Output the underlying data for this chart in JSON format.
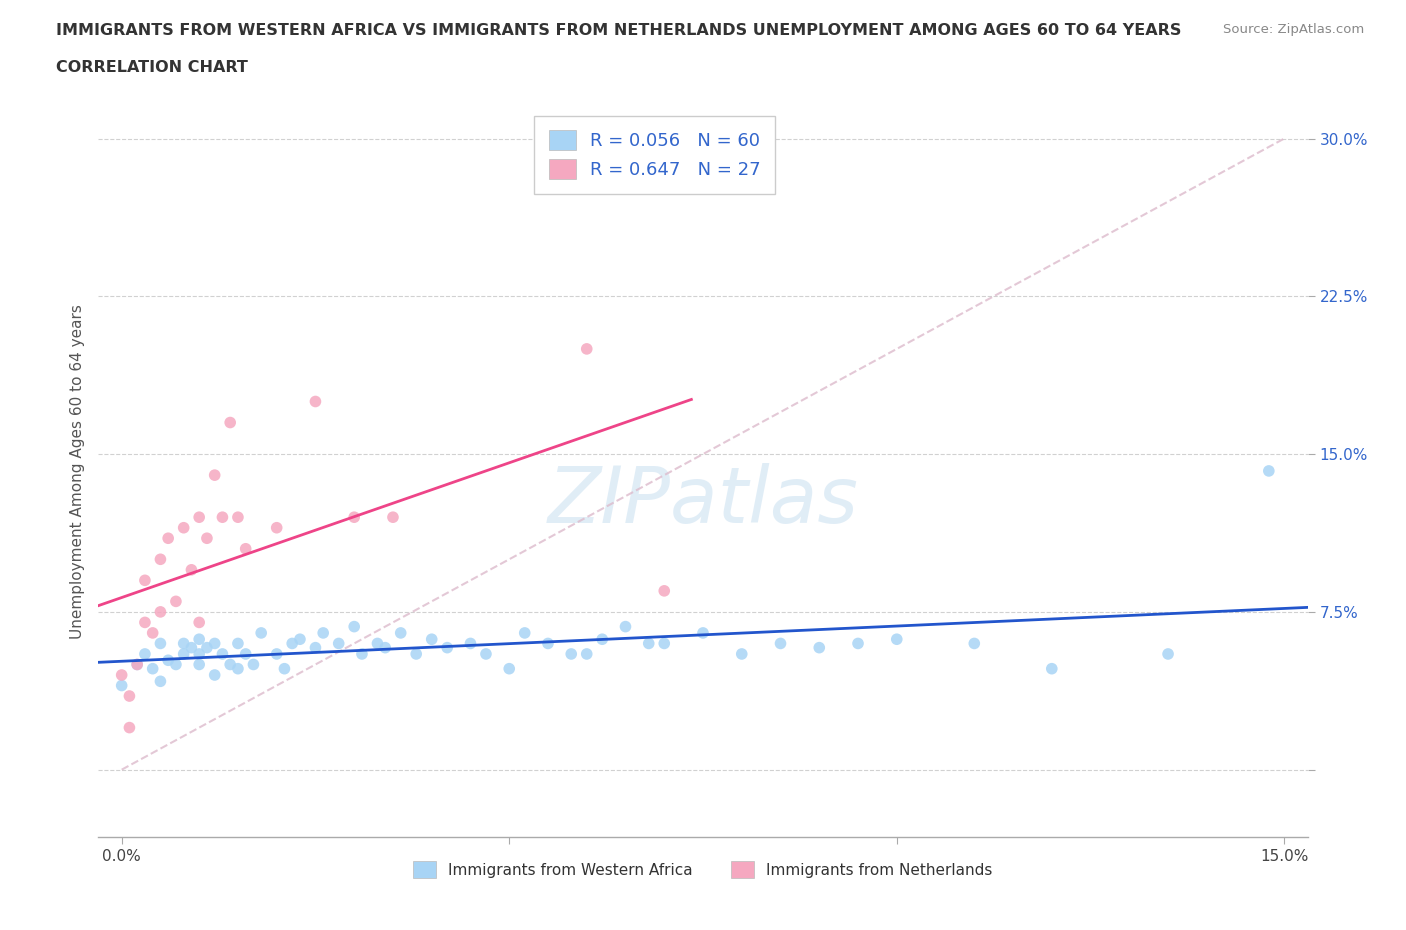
{
  "title_line1": "IMMIGRANTS FROM WESTERN AFRICA VS IMMIGRANTS FROM NETHERLANDS UNEMPLOYMENT AMONG AGES 60 TO 64 YEARS",
  "title_line2": "CORRELATION CHART",
  "source": "Source: ZipAtlas.com",
  "ylabel": "Unemployment Among Ages 60 to 64 years",
  "watermark": "ZIPatlas",
  "xlim": [
    -0.003,
    0.153
  ],
  "ylim": [
    -0.032,
    0.315
  ],
  "r_blue": 0.056,
  "n_blue": 60,
  "r_pink": 0.647,
  "n_pink": 27,
  "color_blue": "#A8D4F5",
  "color_pink": "#F5A8C0",
  "line_blue": "#2255CC",
  "line_pink": "#EE4488",
  "legend_label_blue": "Immigrants from Western Africa",
  "legend_label_pink": "Immigrants from Netherlands",
  "blue_x": [
    0.0,
    0.002,
    0.003,
    0.004,
    0.005,
    0.005,
    0.006,
    0.007,
    0.008,
    0.008,
    0.009,
    0.01,
    0.01,
    0.01,
    0.011,
    0.012,
    0.012,
    0.013,
    0.014,
    0.015,
    0.015,
    0.016,
    0.017,
    0.018,
    0.02,
    0.021,
    0.022,
    0.023,
    0.025,
    0.026,
    0.028,
    0.03,
    0.031,
    0.033,
    0.034,
    0.036,
    0.038,
    0.04,
    0.042,
    0.045,
    0.047,
    0.05,
    0.052,
    0.055,
    0.058,
    0.06,
    0.062,
    0.065,
    0.068,
    0.07,
    0.075,
    0.08,
    0.085,
    0.09,
    0.095,
    0.1,
    0.11,
    0.12,
    0.135,
    0.148
  ],
  "blue_y": [
    0.04,
    0.05,
    0.055,
    0.048,
    0.042,
    0.06,
    0.052,
    0.05,
    0.055,
    0.06,
    0.058,
    0.05,
    0.055,
    0.062,
    0.058,
    0.045,
    0.06,
    0.055,
    0.05,
    0.048,
    0.06,
    0.055,
    0.05,
    0.065,
    0.055,
    0.048,
    0.06,
    0.062,
    0.058,
    0.065,
    0.06,
    0.068,
    0.055,
    0.06,
    0.058,
    0.065,
    0.055,
    0.062,
    0.058,
    0.06,
    0.055,
    0.048,
    0.065,
    0.06,
    0.055,
    0.055,
    0.062,
    0.068,
    0.06,
    0.06,
    0.065,
    0.055,
    0.06,
    0.058,
    0.06,
    0.062,
    0.06,
    0.048,
    0.055,
    0.142
  ],
  "pink_x": [
    0.0,
    0.001,
    0.001,
    0.002,
    0.003,
    0.003,
    0.004,
    0.005,
    0.005,
    0.006,
    0.007,
    0.008,
    0.009,
    0.01,
    0.01,
    0.011,
    0.012,
    0.013,
    0.014,
    0.015,
    0.016,
    0.02,
    0.025,
    0.03,
    0.035,
    0.06,
    0.07
  ],
  "pink_y": [
    0.045,
    0.02,
    0.035,
    0.05,
    0.07,
    0.09,
    0.065,
    0.075,
    0.1,
    0.11,
    0.08,
    0.115,
    0.095,
    0.07,
    0.12,
    0.11,
    0.14,
    0.12,
    0.165,
    0.12,
    0.105,
    0.115,
    0.175,
    0.12,
    0.12,
    0.2,
    0.085
  ],
  "diag_line_x": [
    0.0,
    0.15
  ],
  "diag_line_y": [
    0.0,
    0.3
  ]
}
